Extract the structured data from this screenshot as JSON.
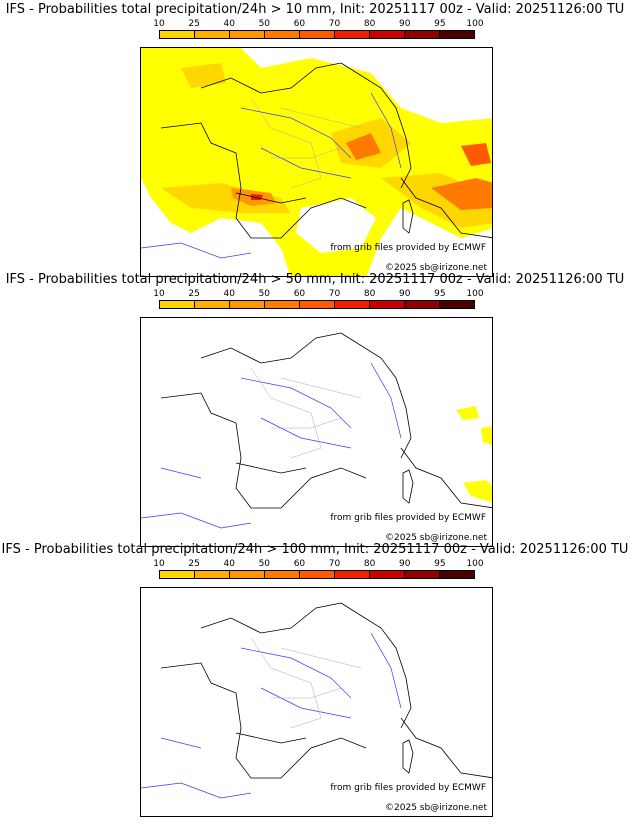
{
  "legend": {
    "ticks": [
      "10",
      "25",
      "40",
      "50",
      "60",
      "70",
      "80",
      "90",
      "95",
      "100"
    ],
    "colors": [
      "#ffff00",
      "#ffd700",
      "#ffb000",
      "#ff9800",
      "#ff7a00",
      "#ff5a00",
      "#ee2000",
      "#c80000",
      "#900000",
      "#4a0000"
    ]
  },
  "panels": [
    {
      "title": "IFS - Probabilities total precipitation/24h > 10 mm, Init: 20251117 00z - Valid: 20251126:00 TU",
      "source_credit": "from grib files provided by ECMWF",
      "copyright": "©2025 sb@irizone.net",
      "coverage": "widespread"
    },
    {
      "title": "IFS - Probabilities total precipitation/24h > 50 mm, Init: 20251117 00z - Valid: 20251126:00 TU",
      "source_credit": "from grib files provided by ECMWF",
      "copyright": "©2025 sb@irizone.net",
      "coverage": "sparse"
    },
    {
      "title": "IFS - Probabilities total precipitation/24h > 100 mm, Init: 20251117 00z - Valid: 20251126:00 TU",
      "source_credit": "from grib files provided by ECMWF",
      "copyright": "©2025 sb@irizone.net",
      "coverage": "none"
    }
  ]
}
